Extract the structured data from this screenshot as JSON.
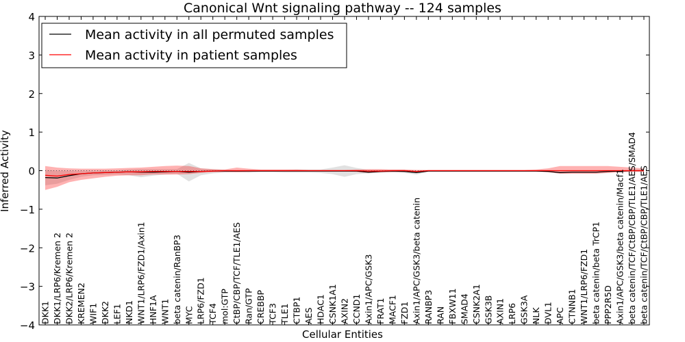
{
  "chart_data": {
    "type": "line",
    "title": "Canonical Wnt signaling pathway -- 124 samples",
    "xlabel": "Cellular Entities",
    "ylabel": "Inferred Activity",
    "ylim": [
      -4,
      4
    ],
    "yticks": [
      -4,
      -3,
      -2,
      -1,
      0,
      1,
      2,
      3,
      4
    ],
    "ytick_labels": [
      "−4",
      "−3",
      "−2",
      "−1",
      "0",
      "1",
      "2",
      "3",
      "4"
    ],
    "grid": false,
    "legend_position": "top-left",
    "categories": [
      "DKK1",
      "DKK1/LRP6/Kremen 2",
      "DKK2/LRP6/Kremen 2",
      "KREMEN2",
      "WIF1",
      "DKK2",
      "LEF1",
      "NKD1",
      "WNT1/LRP6/FZD1/Axin1",
      "HNF1A",
      "WNT1",
      "beta catenin/RanBP3",
      "MYC",
      "LRP6/FZD1",
      "TCF4",
      "mol:GTP",
      "CtBP/CBP/TCF/TLE1/AES",
      "Ran/GTP",
      "CREBBP",
      "TCF3",
      "TLE1",
      "CTBP1",
      "AES",
      "HDAC1",
      "CSNK1A1",
      "AXIN2",
      "CCND1",
      "Axin1/APC/GSK3",
      "FRAT1",
      "MACF1",
      "FZD1",
      "Axin1/APC/GSK3/beta catenin",
      "RANBP3",
      "RAN",
      "FBXW11",
      "SMAD4",
      "CSNK2A1",
      "GSK3B",
      "AXIN1",
      "LRP6",
      "GSK3A",
      "NLK",
      "DVL1",
      "APC",
      "CTNNB1",
      "WNT1/LRP6/FZD1",
      "beta catenin/beta TrCP1",
      "PPP2R5D",
      "Axin1/APC/GSK3/beta catenin/Macf1",
      "beta catenin/TCF/CtBP/CBP/TLE1/AES/SMAD4",
      "beta catenin/TCF/CtBP/CBP/TLE1/AES"
    ],
    "series": [
      {
        "name": "Mean activity in all permuted samples",
        "color": "#000000",
        "values": [
          -0.18,
          -0.19,
          -0.13,
          -0.08,
          -0.06,
          -0.05,
          -0.04,
          -0.03,
          -0.04,
          -0.04,
          -0.03,
          -0.02,
          -0.04,
          -0.02,
          -0.01,
          -0.01,
          -0.01,
          -0.01,
          -0.01,
          -0.01,
          -0.01,
          -0.01,
          -0.01,
          -0.01,
          -0.01,
          -0.01,
          -0.01,
          -0.04,
          -0.02,
          -0.01,
          -0.02,
          -0.05,
          -0.01,
          -0.01,
          -0.01,
          -0.01,
          -0.01,
          -0.01,
          -0.01,
          -0.01,
          -0.01,
          -0.01,
          -0.02,
          -0.05,
          -0.04,
          -0.04,
          -0.04,
          -0.02,
          -0.01,
          0.0,
          0.0
        ],
        "band_lower": [
          -0.38,
          -0.34,
          -0.24,
          -0.16,
          -0.12,
          -0.11,
          -0.1,
          -0.12,
          -0.17,
          -0.13,
          -0.1,
          -0.08,
          -0.28,
          -0.12,
          -0.07,
          -0.05,
          -0.04,
          -0.05,
          -0.04,
          -0.04,
          -0.05,
          -0.05,
          -0.05,
          -0.06,
          -0.09,
          -0.16,
          -0.09,
          -0.07,
          -0.06,
          -0.05,
          -0.06,
          -0.1,
          -0.03,
          -0.03,
          -0.03,
          -0.03,
          -0.03,
          -0.03,
          -0.03,
          -0.03,
          -0.03,
          -0.03,
          -0.04,
          -0.07,
          -0.06,
          -0.06,
          -0.06,
          -0.05,
          -0.03,
          -0.02,
          -0.02
        ],
        "band_upper": [
          0.02,
          0.0,
          0.0,
          0.0,
          0.0,
          0.01,
          0.01,
          0.03,
          0.04,
          0.04,
          0.04,
          0.04,
          0.2,
          0.06,
          0.04,
          0.02,
          0.01,
          0.02,
          0.02,
          0.02,
          0.02,
          0.03,
          0.03,
          0.03,
          0.08,
          0.14,
          0.07,
          0.02,
          0.02,
          0.02,
          0.02,
          0.0,
          0.01,
          0.01,
          0.01,
          0.01,
          0.01,
          0.01,
          0.01,
          0.01,
          0.01,
          0.01,
          0.0,
          -0.02,
          -0.01,
          -0.01,
          -0.01,
          0.0,
          0.01,
          0.02,
          0.02
        ]
      },
      {
        "name": "Mean activity in patient samples",
        "color": "#ff0000",
        "values": [
          -0.12,
          -0.14,
          -0.1,
          -0.08,
          -0.06,
          -0.05,
          -0.04,
          -0.03,
          -0.03,
          -0.02,
          -0.02,
          -0.02,
          -0.02,
          -0.02,
          -0.01,
          0.0,
          0.0,
          0.0,
          0.0,
          0.0,
          0.0,
          0.0,
          0.0,
          0.0,
          0.0,
          0.0,
          0.0,
          -0.01,
          -0.01,
          0.0,
          0.0,
          -0.02,
          0.0,
          0.0,
          0.0,
          0.0,
          0.0,
          0.0,
          0.0,
          0.0,
          0.0,
          0.0,
          0.0,
          0.0,
          0.0,
          0.0,
          0.0,
          0.0,
          0.0,
          0.0,
          0.0
        ],
        "band_lower": [
          -0.5,
          -0.42,
          -0.3,
          -0.24,
          -0.2,
          -0.16,
          -0.13,
          -0.12,
          -0.12,
          -0.1,
          -0.1,
          -0.1,
          -0.09,
          -0.06,
          -0.04,
          -0.03,
          -0.04,
          -0.03,
          -0.02,
          -0.02,
          -0.02,
          -0.02,
          -0.02,
          -0.02,
          -0.02,
          -0.02,
          -0.03,
          -0.06,
          -0.04,
          -0.03,
          -0.03,
          -0.06,
          -0.02,
          -0.01,
          -0.01,
          -0.01,
          -0.01,
          -0.01,
          -0.01,
          -0.01,
          -0.01,
          -0.02,
          -0.04,
          -0.08,
          -0.08,
          -0.08,
          -0.08,
          -0.06,
          -0.04,
          -0.03,
          -0.03
        ],
        "band_upper": [
          0.12,
          0.08,
          0.06,
          0.05,
          0.05,
          0.05,
          0.06,
          0.07,
          0.08,
          0.1,
          0.12,
          0.13,
          0.12,
          0.06,
          0.04,
          0.03,
          0.08,
          0.05,
          0.03,
          0.03,
          0.03,
          0.03,
          0.02,
          0.02,
          0.02,
          0.02,
          0.03,
          0.04,
          0.04,
          0.03,
          0.03,
          0.02,
          0.02,
          0.02,
          0.02,
          0.02,
          0.02,
          0.02,
          0.02,
          0.02,
          0.02,
          0.03,
          0.06,
          0.12,
          0.12,
          0.12,
          0.12,
          0.12,
          0.1,
          0.08,
          0.06
        ]
      }
    ],
    "reference_line": {
      "label": "",
      "value": 0
    }
  }
}
